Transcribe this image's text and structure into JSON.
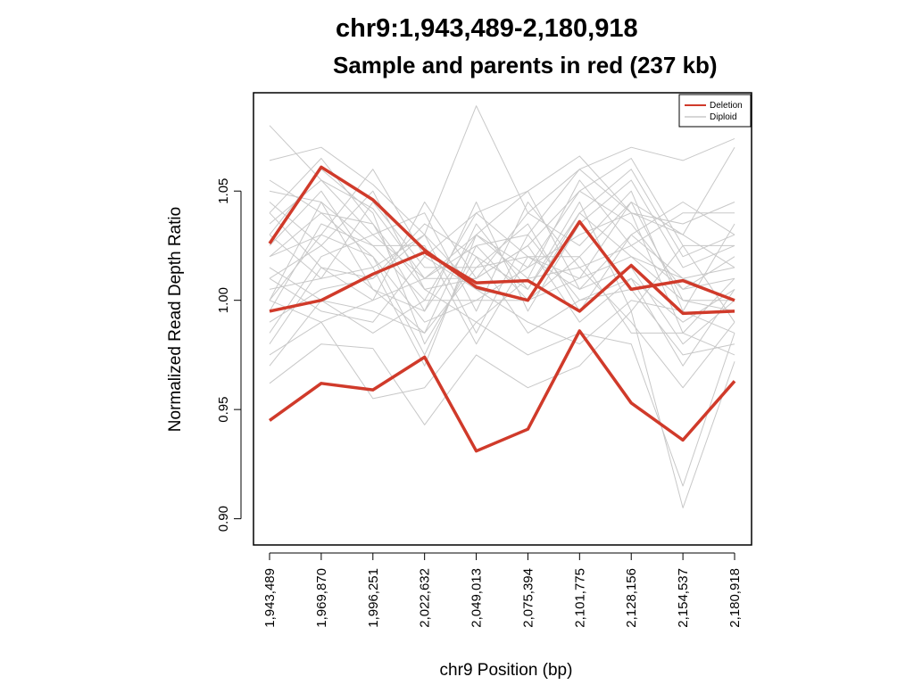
{
  "chart_data": {
    "type": "line",
    "title": "chr9:1,943,489-2,180,918",
    "subtitle": "Sample and parents in red (237 kb)",
    "xlabel": "chr9 Position (bp)",
    "ylabel": "Normalized Read Depth Ratio",
    "categories": [
      "1,943,489",
      "1,969,870",
      "1,996,251",
      "2,022,632",
      "2,049,013",
      "2,075,394",
      "2,101,775",
      "2,128,156",
      "2,154,537",
      "2,180,918"
    ],
    "ylim": [
      0.888,
      1.095
    ],
    "yticks": [
      "0.90",
      "0.95",
      "1.00",
      "1.05"
    ],
    "ytick_values": [
      0.9,
      0.95,
      1.0,
      1.05
    ],
    "grid": false,
    "legend_position": "top-right",
    "legend": [
      {
        "label": "Deletion",
        "color": "#d03a2a"
      },
      {
        "label": "Diploid",
        "color": "#c8c8c8"
      }
    ],
    "series": [
      {
        "group": "Diploid",
        "values": [
          1.08,
          1.055,
          1.042,
          1.01,
          1.03,
          1.05,
          1.066,
          1.04,
          1.03,
          1.07
        ]
      },
      {
        "group": "Diploid",
        "values": [
          1.064,
          1.07,
          1.053,
          1.03,
          1.089,
          1.04,
          1.06,
          1.07,
          1.064,
          1.074
        ]
      },
      {
        "group": "Diploid",
        "values": [
          0.962,
          0.98,
          0.978,
          0.943,
          0.975,
          0.96,
          0.97,
          0.995,
          0.905,
          0.972
        ]
      },
      {
        "group": "Diploid",
        "values": [
          0.975,
          0.99,
          0.955,
          0.96,
          0.99,
          0.975,
          0.985,
          0.98,
          0.915,
          0.985
        ]
      },
      {
        "group": "Diploid",
        "values": [
          1.02,
          1.04,
          1.035,
          1.005,
          1.01,
          1.025,
          1.05,
          1.035,
          1.005,
          1.02
        ]
      },
      {
        "group": "Diploid",
        "values": [
          1.0,
          1.03,
          1.02,
          0.99,
          1.0,
          1.015,
          1.03,
          1.04,
          0.985,
          1.01
        ]
      },
      {
        "group": "Diploid",
        "values": [
          1.04,
          1.015,
          1.0,
          1.01,
          1.025,
          1.0,
          1.01,
          1.02,
          1.0,
          0.995
        ]
      },
      {
        "group": "Diploid",
        "values": [
          0.99,
          1.005,
          1.01,
          1.03,
          0.985,
          1.03,
          1.0,
          1.01,
          0.97,
          1.005
        ]
      },
      {
        "group": "Diploid",
        "values": [
          1.03,
          1.06,
          1.04,
          0.98,
          1.02,
          1.005,
          1.04,
          1.06,
          1.02,
          1.03
        ]
      },
      {
        "group": "Diploid",
        "values": [
          1.01,
          0.995,
          0.99,
          1.02,
          1.005,
          0.99,
          0.98,
          1.0,
          0.995,
          0.985
        ]
      },
      {
        "group": "Diploid",
        "values": [
          1.05,
          1.045,
          1.025,
          1.0,
          1.04,
          1.02,
          1.02,
          1.045,
          1.03,
          1.015
        ]
      },
      {
        "group": "Diploid",
        "values": [
          0.985,
          1.02,
          1.03,
          1.04,
          0.995,
          1.045,
          1.015,
          0.99,
          0.96,
          0.99
        ]
      },
      {
        "group": "Diploid",
        "values": [
          1.025,
          1.05,
          1.015,
          0.97,
          1.03,
          1.01,
          1.055,
          1.025,
          1.04,
          1.04
        ]
      },
      {
        "group": "Diploid",
        "values": [
          1.005,
          1.01,
          1.045,
          1.015,
          1.015,
          1.035,
          0.995,
          1.03,
          1.01,
          1.0
        ]
      },
      {
        "group": "Diploid",
        "values": [
          1.045,
          1.025,
          1.005,
          0.995,
          1.045,
          0.995,
          1.035,
          1.055,
          1.015,
          1.025
        ]
      },
      {
        "group": "Diploid",
        "values": [
          0.995,
          1.035,
          1.025,
          1.025,
          0.98,
          1.02,
          1.005,
          1.015,
          0.98,
          1.0
        ]
      },
      {
        "group": "Diploid",
        "values": [
          1.015,
          1.0,
          0.995,
          0.985,
          1.035,
          1.005,
          1.045,
          0.995,
          1.025,
          0.99
        ]
      },
      {
        "group": "Diploid",
        "values": [
          1.035,
          1.055,
          1.03,
          1.01,
          1.01,
          1.04,
          1.025,
          1.05,
          0.995,
          1.035
        ]
      },
      {
        "group": "Diploid",
        "values": [
          0.98,
          1.015,
          1.01,
          1.035,
          1.02,
          0.985,
          1.0,
          1.005,
          0.975,
          0.98
        ]
      },
      {
        "group": "Diploid",
        "values": [
          1.055,
          1.04,
          1.02,
          0.975,
          1.025,
          1.03,
          1.06,
          1.04,
          1.035,
          1.045
        ]
      },
      {
        "group": "Diploid",
        "values": [
          1.01,
          1.025,
          1.05,
          1.005,
          0.99,
          1.01,
          1.015,
          1.025,
          1.005,
          1.01
        ]
      },
      {
        "group": "Diploid",
        "values": [
          1.0,
          0.99,
          1.0,
          1.045,
          1.01,
          1.025,
          0.99,
          1.01,
          0.99,
          1.005
        ]
      },
      {
        "group": "Diploid",
        "values": [
          1.04,
          1.065,
          1.035,
          0.995,
          1.03,
          1.015,
          1.05,
          1.065,
          1.025,
          1.025
        ]
      },
      {
        "group": "Diploid",
        "values": [
          0.97,
          1.0,
          0.985,
          1.0,
          1.0,
          1.0,
          1.02,
          0.985,
          0.985,
          0.975
        ]
      },
      {
        "group": "Diploid",
        "values": [
          1.02,
          1.03,
          1.06,
          1.02,
          1.04,
          1.05,
          1.005,
          1.03,
          1.045,
          1.03
        ]
      },
      {
        "group": "Diploid",
        "values": [
          1.03,
          1.01,
          1.015,
          1.03,
          1.005,
          1.0,
          1.04,
          1.02,
          1.01,
          1.015
        ]
      },
      {
        "group": "Diploid",
        "values": [
          1.0,
          1.045,
          1.005,
          0.985,
          1.015,
          1.02,
          1.01,
          1.045,
          1.0,
          1.0
        ]
      },
      {
        "group": "Deletion",
        "values": [
          1.026,
          1.061,
          1.046,
          1.023,
          1.006,
          1.0,
          1.036,
          1.005,
          1.009,
          1.0
        ]
      },
      {
        "group": "Deletion",
        "values": [
          0.995,
          1.0,
          1.012,
          1.022,
          1.008,
          1.009,
          0.995,
          1.016,
          0.994,
          0.995
        ]
      },
      {
        "group": "Deletion",
        "values": [
          0.945,
          0.962,
          0.959,
          0.974,
          0.931,
          0.941,
          0.986,
          0.953,
          0.936,
          0.963
        ]
      }
    ]
  }
}
